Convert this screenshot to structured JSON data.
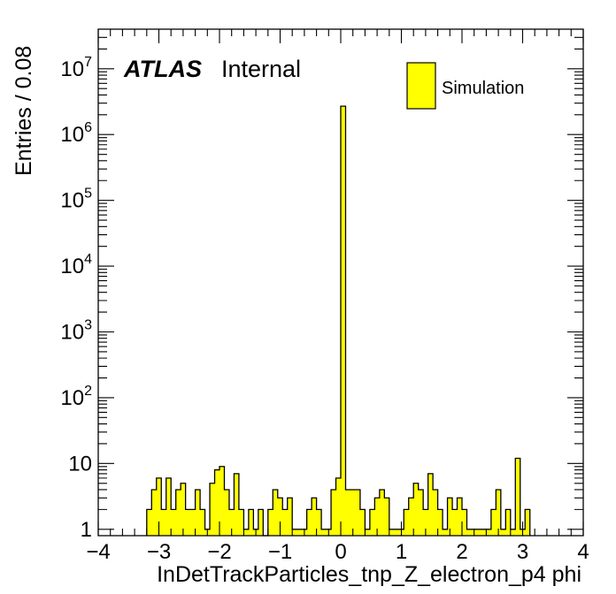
{
  "chart_data": {
    "type": "histogram",
    "xlabel": "InDetTrackParticles_tnp_Z_electron_p4 phi",
    "ylabel": "Entries / 0.08",
    "atlas_label": "ATLAS",
    "atlas_status": "Internal",
    "legend": [
      {
        "name": "Simulation",
        "color": "#ffff00"
      }
    ],
    "legend_position": "top-right",
    "xlim": [
      -4,
      4
    ],
    "ylim": [
      0.8,
      40000000
    ],
    "yscale": "log",
    "bin_width": 0.08,
    "grid": false,
    "x_ticks": [
      "−4",
      "−3",
      "−2",
      "−1",
      "0",
      "1",
      "2",
      "3",
      "4"
    ],
    "y_ticks": [
      "1",
      "10",
      "10²",
      "10³",
      "10⁴",
      "10⁵",
      "10⁶",
      "10⁷"
    ],
    "fill_color": "#ffff00",
    "bins": [
      {
        "x_low": -3.2,
        "x_high": -3.12,
        "value": 2
      },
      {
        "x_low": -3.12,
        "x_high": -3.04,
        "value": 4
      },
      {
        "x_low": -3.04,
        "x_high": -2.96,
        "value": 6
      },
      {
        "x_low": -2.96,
        "x_high": -2.88,
        "value": 2
      },
      {
        "x_low": -2.88,
        "x_high": -2.8,
        "value": 6
      },
      {
        "x_low": -2.8,
        "x_high": -2.72,
        "value": 2
      },
      {
        "x_low": -2.72,
        "x_high": -2.64,
        "value": 4
      },
      {
        "x_low": -2.64,
        "x_high": -2.56,
        "value": 5
      },
      {
        "x_low": -2.56,
        "x_high": -2.48,
        "value": 2
      },
      {
        "x_low": -2.48,
        "x_high": -2.4,
        "value": 2
      },
      {
        "x_low": -2.4,
        "x_high": -2.32,
        "value": 4
      },
      {
        "x_low": -2.32,
        "x_high": -2.24,
        "value": 2
      },
      {
        "x_low": -2.24,
        "x_high": -2.16,
        "value": 1
      },
      {
        "x_low": -2.16,
        "x_high": -2.08,
        "value": 5
      },
      {
        "x_low": -2.08,
        "x_high": -2.0,
        "value": 8
      },
      {
        "x_low": -2.0,
        "x_high": -1.92,
        "value": 9
      },
      {
        "x_low": -1.92,
        "x_high": -1.84,
        "value": 4
      },
      {
        "x_low": -1.84,
        "x_high": -1.76,
        "value": 2
      },
      {
        "x_low": -1.76,
        "x_high": -1.68,
        "value": 7
      },
      {
        "x_low": -1.68,
        "x_high": -1.6,
        "value": 2
      },
      {
        "x_low": -1.6,
        "x_high": -1.52,
        "value": 1
      },
      {
        "x_low": -1.52,
        "x_high": -1.44,
        "value": 2
      },
      {
        "x_low": -1.44,
        "x_high": -1.36,
        "value": 1
      },
      {
        "x_low": -1.36,
        "x_high": -1.28,
        "value": 2
      },
      {
        "x_low": -1.28,
        "x_high": -1.2,
        "value": 0
      },
      {
        "x_low": -1.2,
        "x_high": -1.12,
        "value": 2
      },
      {
        "x_low": -1.12,
        "x_high": -1.04,
        "value": 4
      },
      {
        "x_low": -1.04,
        "x_high": -0.96,
        "value": 3
      },
      {
        "x_low": -0.96,
        "x_high": -0.88,
        "value": 2
      },
      {
        "x_low": -0.88,
        "x_high": -0.8,
        "value": 3
      },
      {
        "x_low": -0.8,
        "x_high": -0.72,
        "value": 1
      },
      {
        "x_low": -0.72,
        "x_high": -0.64,
        "value": 1
      },
      {
        "x_low": -0.64,
        "x_high": -0.56,
        "value": 1
      },
      {
        "x_low": -0.56,
        "x_high": -0.48,
        "value": 2
      },
      {
        "x_low": -0.48,
        "x_high": -0.4,
        "value": 3
      },
      {
        "x_low": -0.4,
        "x_high": -0.32,
        "value": 2
      },
      {
        "x_low": -0.32,
        "x_high": -0.24,
        "value": 1
      },
      {
        "x_low": -0.24,
        "x_high": -0.16,
        "value": 1
      },
      {
        "x_low": -0.16,
        "x_high": -0.08,
        "value": 4
      },
      {
        "x_low": -0.08,
        "x_high": 0.0,
        "value": 6
      },
      {
        "x_low": 0.0,
        "x_high": 0.08,
        "value": 2700000
      },
      {
        "x_low": 0.08,
        "x_high": 0.16,
        "value": 4
      },
      {
        "x_low": 0.16,
        "x_high": 0.24,
        "value": 4
      },
      {
        "x_low": 0.24,
        "x_high": 0.32,
        "value": 4
      },
      {
        "x_low": 0.32,
        "x_high": 0.4,
        "value": 2
      },
      {
        "x_low": 0.4,
        "x_high": 0.48,
        "value": 1
      },
      {
        "x_low": 0.48,
        "x_high": 0.56,
        "value": 2
      },
      {
        "x_low": 0.56,
        "x_high": 0.64,
        "value": 3
      },
      {
        "x_low": 0.64,
        "x_high": 0.72,
        "value": 4
      },
      {
        "x_low": 0.72,
        "x_high": 0.8,
        "value": 3
      },
      {
        "x_low": 0.8,
        "x_high": 0.88,
        "value": 1
      },
      {
        "x_low": 0.88,
        "x_high": 0.96,
        "value": 1
      },
      {
        "x_low": 0.96,
        "x_high": 1.04,
        "value": 1
      },
      {
        "x_low": 1.04,
        "x_high": 1.12,
        "value": 2
      },
      {
        "x_low": 1.12,
        "x_high": 1.2,
        "value": 3
      },
      {
        "x_low": 1.2,
        "x_high": 1.28,
        "value": 5
      },
      {
        "x_low": 1.28,
        "x_high": 1.36,
        "value": 4
      },
      {
        "x_low": 1.36,
        "x_high": 1.44,
        "value": 2
      },
      {
        "x_low": 1.44,
        "x_high": 1.52,
        "value": 7
      },
      {
        "x_low": 1.52,
        "x_high": 1.6,
        "value": 4
      },
      {
        "x_low": 1.6,
        "x_high": 1.68,
        "value": 2
      },
      {
        "x_low": 1.68,
        "x_high": 1.76,
        "value": 1
      },
      {
        "x_low": 1.76,
        "x_high": 1.84,
        "value": 3
      },
      {
        "x_low": 1.84,
        "x_high": 1.92,
        "value": 2
      },
      {
        "x_low": 1.92,
        "x_high": 2.0,
        "value": 3
      },
      {
        "x_low": 2.0,
        "x_high": 2.08,
        "value": 2
      },
      {
        "x_low": 2.08,
        "x_high": 2.16,
        "value": 1
      },
      {
        "x_low": 2.16,
        "x_high": 2.24,
        "value": 1
      },
      {
        "x_low": 2.24,
        "x_high": 2.32,
        "value": 1
      },
      {
        "x_low": 2.32,
        "x_high": 2.4,
        "value": 1
      },
      {
        "x_low": 2.4,
        "x_high": 2.48,
        "value": 1
      },
      {
        "x_low": 2.48,
        "x_high": 2.56,
        "value": 2
      },
      {
        "x_low": 2.56,
        "x_high": 2.64,
        "value": 4
      },
      {
        "x_low": 2.64,
        "x_high": 2.72,
        "value": 1
      },
      {
        "x_low": 2.72,
        "x_high": 2.8,
        "value": 2
      },
      {
        "x_low": 2.8,
        "x_high": 2.88,
        "value": 1
      },
      {
        "x_low": 2.88,
        "x_high": 2.96,
        "value": 12
      },
      {
        "x_low": 2.96,
        "x_high": 3.04,
        "value": 1
      },
      {
        "x_low": 3.04,
        "x_high": 3.12,
        "value": 2
      }
    ]
  }
}
